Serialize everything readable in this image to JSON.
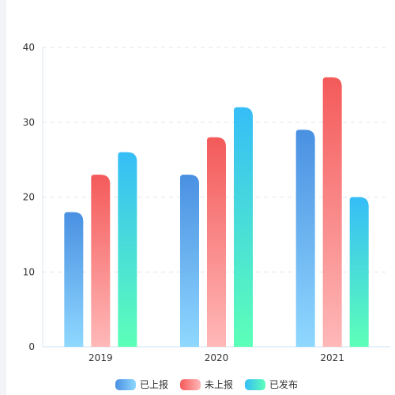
{
  "chart_data": {
    "type": "bar",
    "categories": [
      "2019",
      "2020",
      "2021"
    ],
    "series": [
      {
        "name": "已上报",
        "values": [
          18,
          23,
          29
        ],
        "color_top": "#4a90e2",
        "color_bottom": "#8fd8ff"
      },
      {
        "name": "未上报",
        "values": [
          23,
          28,
          36
        ],
        "color_top": "#f45a5a",
        "color_bottom": "#ffb8b8"
      },
      {
        "name": "已发布",
        "values": [
          26,
          32,
          20
        ],
        "color_top": "#36bdf7",
        "color_bottom": "#5cffb8"
      }
    ],
    "ylim": [
      0,
      40
    ],
    "yticks": [
      0,
      10,
      20,
      30,
      40
    ],
    "grid": true,
    "grid_style": "dashed",
    "legend": "bottom-center"
  }
}
